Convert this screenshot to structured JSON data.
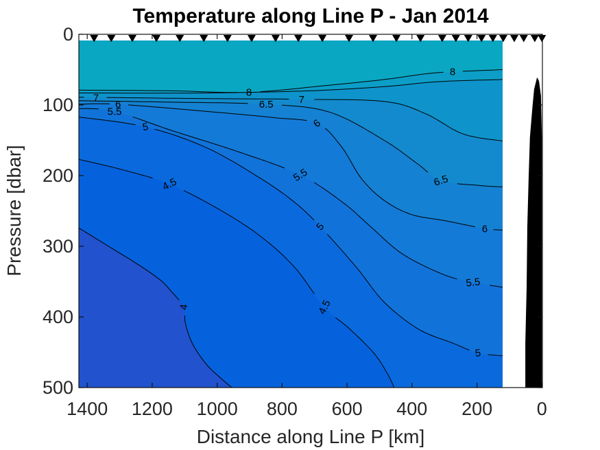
{
  "chart_data": {
    "type": "contour",
    "title": "Temperature along Line P - Jan 2014",
    "xlabel": "Distance along Line P [km]",
    "ylabel": "Pressure [dbar]",
    "x_axis_reversed": true,
    "y_axis_increases_downward": true,
    "x_range_km": [
      1426,
      0
    ],
    "y_range_dbar": [
      0,
      500
    ],
    "x_ticks_km": [
      1400,
      1200,
      1000,
      800,
      600,
      400,
      200,
      0
    ],
    "y_ticks_dbar": [
      0,
      100,
      200,
      300,
      400,
      500
    ],
    "units": {
      "x": "km",
      "y": "dbar",
      "z": "degC"
    },
    "levels_degc": [
      4,
      4.5,
      5,
      5.5,
      6,
      6.5,
      7,
      7.5,
      8
    ],
    "band_colors": [
      "#2252CD",
      "#0562DC",
      "#0A6ADD",
      "#1173DA",
      "#147AD7",
      "#1581D2",
      "#138ACD",
      "#0E94CB",
      "#0C9EC7",
      "#0AA7C3"
    ],
    "line_color": "#000000",
    "data_region": {
      "x_km": [
        1426,
        121
      ],
      "top_dbar": 9,
      "bottom_dbar": 500
    },
    "contours": [
      {
        "level": 4,
        "points": [
          [
            1426,
            274
          ],
          [
            1331,
            301
          ],
          [
            1246,
            325
          ],
          [
            1177,
            347
          ],
          [
            1141,
            364
          ],
          [
            1103,
            386
          ],
          [
            1098,
            408
          ],
          [
            1077,
            437
          ],
          [
            1035,
            466
          ],
          [
            993,
            485
          ],
          [
            955,
            500
          ]
        ],
        "labels": [
          {
            "text": "4",
            "km": 1103,
            "dbar": 386,
            "rot": -83
          }
        ]
      },
      {
        "level": 4.5,
        "points": [
          [
            1426,
            177
          ],
          [
            1289,
            192
          ],
          [
            1147,
            212
          ],
          [
            993,
            248
          ],
          [
            866,
            286
          ],
          [
            761,
            330
          ],
          [
            670,
            386
          ],
          [
            592,
            417
          ],
          [
            518,
            451
          ],
          [
            476,
            480
          ],
          [
            455,
            500
          ]
        ],
        "labels": [
          {
            "text": "4.5",
            "km": 1147,
            "dbar": 212,
            "rot": -27
          },
          {
            "text": "4.5",
            "km": 670,
            "dbar": 386,
            "rot": -63
          }
        ]
      },
      {
        "level": 5,
        "points": [
          [
            1426,
            117
          ],
          [
            1221,
            131
          ],
          [
            1035,
            160
          ],
          [
            866,
            204
          ],
          [
            761,
            238
          ],
          [
            683,
            272
          ],
          [
            571,
            330
          ],
          [
            486,
            379
          ],
          [
            381,
            417
          ],
          [
            275,
            437
          ],
          [
            197,
            451
          ],
          [
            121,
            455
          ]
        ],
        "labels": [
          {
            "text": "5",
            "km": 1221,
            "dbar": 131,
            "rot": -10
          },
          {
            "text": "5",
            "km": 683,
            "dbar": 272,
            "rot": -48
          },
          {
            "text": "5",
            "km": 197,
            "dbar": 451,
            "rot": -6
          }
        ]
      },
      {
        "level": 5.5,
        "points": [
          [
            1426,
            105
          ],
          [
            1316,
            109
          ],
          [
            1141,
            136
          ],
          [
            930,
            167
          ],
          [
            744,
            199
          ],
          [
            613,
            238
          ],
          [
            528,
            272
          ],
          [
            429,
            311
          ],
          [
            303,
            340
          ],
          [
            212,
            351
          ],
          [
            121,
            358
          ]
        ],
        "labels": [
          {
            "text": "5.5",
            "km": 1316,
            "dbar": 109,
            "rot": 0
          },
          {
            "text": "5.5",
            "km": 744,
            "dbar": 199,
            "rot": -32
          },
          {
            "text": "5.5",
            "km": 212,
            "dbar": 351,
            "rot": -6
          }
        ]
      },
      {
        "level": 6,
        "points": [
          [
            1426,
            99
          ],
          [
            1305,
            99
          ],
          [
            1035,
            109
          ],
          [
            824,
            118
          ],
          [
            693,
            126
          ],
          [
            619,
            158
          ],
          [
            556,
            204
          ],
          [
            486,
            235
          ],
          [
            402,
            255
          ],
          [
            296,
            264
          ],
          [
            176,
            275
          ],
          [
            121,
            277
          ]
        ],
        "labels": [
          {
            "text": "6",
            "km": 1305,
            "dbar": 99,
            "rot": 0
          },
          {
            "text": "6",
            "km": 693,
            "dbar": 126,
            "rot": -38
          },
          {
            "text": "6",
            "km": 176,
            "dbar": 275,
            "rot": 0
          }
        ]
      },
      {
        "level": 6.5,
        "points": [
          [
            1426,
            94
          ],
          [
            1141,
            96
          ],
          [
            849,
            99
          ],
          [
            655,
            110
          ],
          [
            486,
            150
          ],
          [
            381,
            184
          ],
          [
            311,
            207
          ],
          [
            191,
            214
          ],
          [
            121,
            216
          ]
        ],
        "labels": [
          {
            "text": "6.5",
            "km": 849,
            "dbar": 99,
            "rot": 0
          },
          {
            "text": "6.5",
            "km": 311,
            "dbar": 207,
            "rot": -18
          }
        ]
      },
      {
        "level": 7,
        "points": [
          [
            1426,
            89
          ],
          [
            1035,
            91
          ],
          [
            740,
            92
          ],
          [
            486,
            95
          ],
          [
            360,
            112
          ],
          [
            243,
            141
          ],
          [
            121,
            151
          ]
        ],
        "labels": [
          {
            "text": "7",
            "km": 1373,
            "dbar": 90,
            "rot": 0
          },
          {
            "text": "7",
            "km": 740,
            "dbar": 92,
            "rot": 0
          }
        ]
      },
      {
        "level": 7.5,
        "points": [
          [
            1426,
            83
          ],
          [
            1035,
            83
          ],
          [
            718,
            80
          ],
          [
            486,
            74
          ],
          [
            317,
            67
          ],
          [
            121,
            64
          ]
        ],
        "labels": []
      },
      {
        "level": 8,
        "points": [
          [
            1426,
            79
          ],
          [
            1141,
            80
          ],
          [
            902,
            82
          ],
          [
            655,
            72
          ],
          [
            486,
            64
          ],
          [
            360,
            56
          ],
          [
            275,
            53
          ],
          [
            121,
            50
          ]
        ],
        "labels": [
          {
            "text": "8",
            "km": 902,
            "dbar": 82,
            "rot": 0
          },
          {
            "text": "8",
            "km": 275,
            "dbar": 53,
            "rot": 0
          }
        ]
      }
    ],
    "station_positions_km": [
      1379,
      1326,
      1261,
      1187,
      1115,
      1041,
      968,
      894,
      820,
      750,
      676,
      594,
      520,
      448,
      374,
      307,
      265,
      227,
      186,
      151,
      119,
      85,
      56,
      22,
      0
    ],
    "bathymetry_km_dbar": [
      [
        51,
        500
      ],
      [
        51,
        437
      ],
      [
        47,
        359
      ],
      [
        45,
        272
      ],
      [
        41,
        204
      ],
      [
        37,
        146
      ],
      [
        30,
        107
      ],
      [
        24,
        78
      ],
      [
        15,
        61
      ],
      [
        9,
        66
      ],
      [
        3,
        87
      ],
      [
        0,
        146
      ],
      [
        0,
        243
      ],
      [
        0,
        500
      ]
    ]
  },
  "styles": {
    "axis_color": "#111111",
    "tick_label_color": "#262626",
    "title_color": "#000000",
    "surface_band_color": "#0AA7C3",
    "deep_band_color": "#2252CD"
  }
}
